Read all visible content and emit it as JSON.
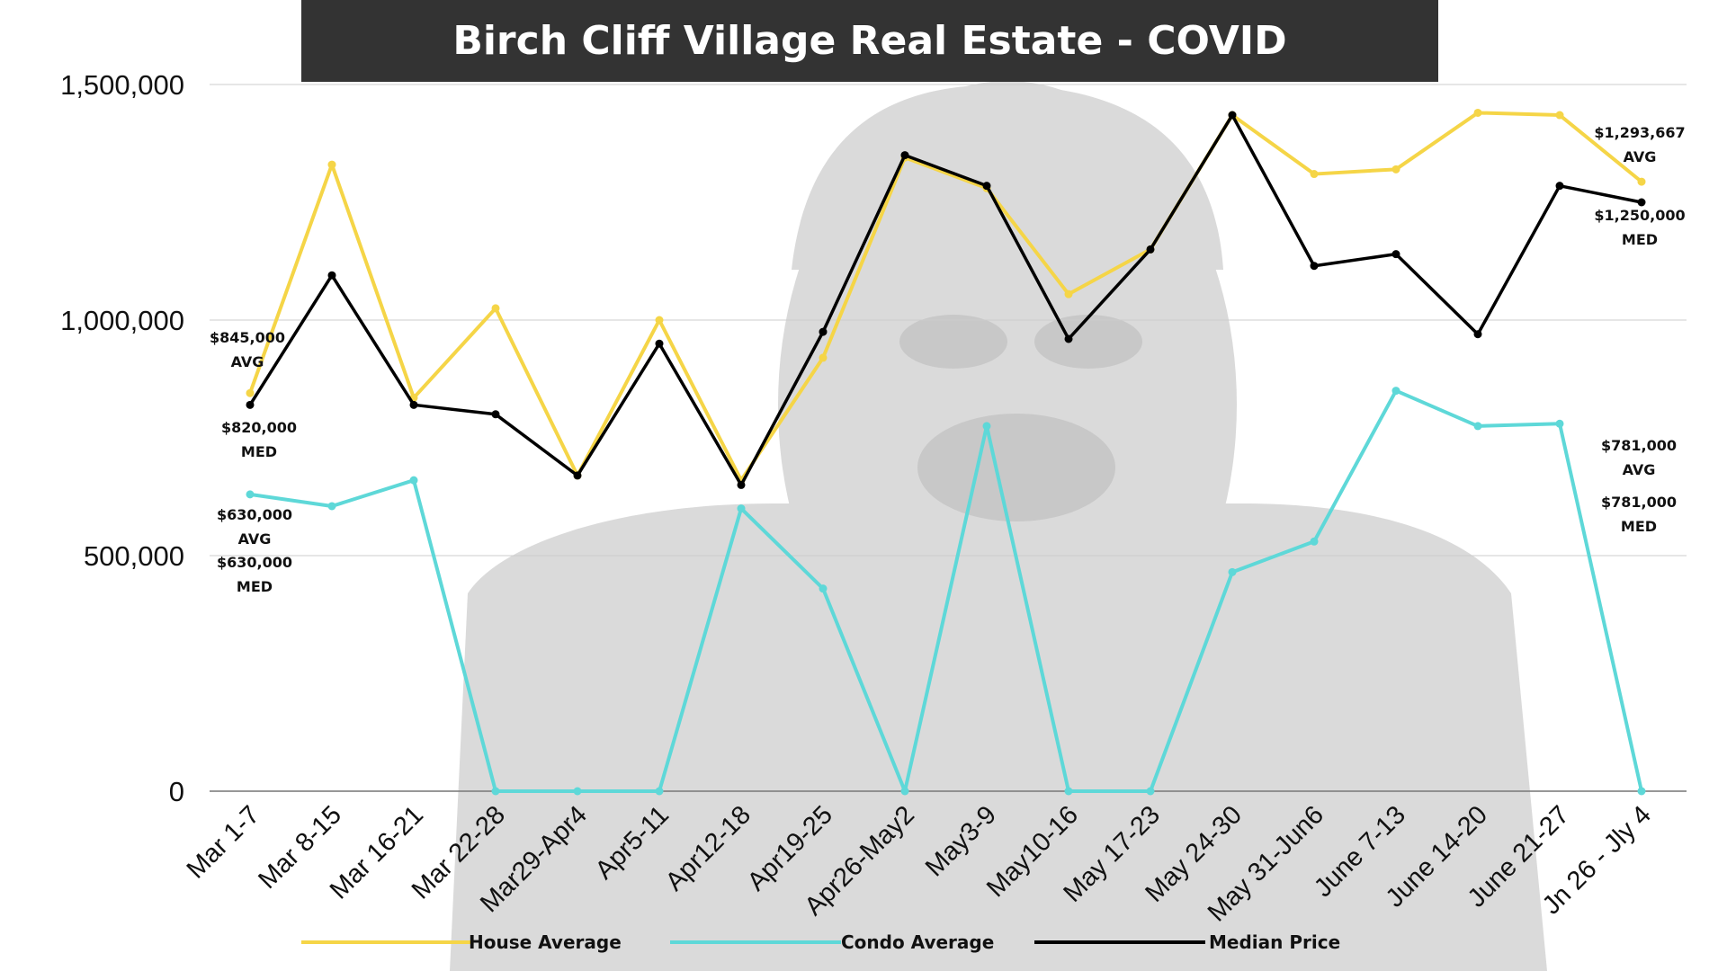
{
  "title": "Birch Cliff Village Real Estate - COVID",
  "colors": {
    "house": "#F5D547",
    "condo": "#5ED8D8",
    "median": "#000000",
    "grid": "#cccccc",
    "title_bg": "#333333",
    "watermark": "#d3d3d3"
  },
  "chart_data": {
    "type": "line",
    "title": "Birch Cliff Village Real Estate - COVID",
    "xlabel": "",
    "ylabel": "",
    "ylim": [
      0,
      1500000
    ],
    "yticks": [
      0,
      500000,
      1000000,
      1500000
    ],
    "ytick_labels": [
      "0",
      "500,000",
      "1,000,000",
      "1,500,000"
    ],
    "grid": true,
    "legend_position": "bottom",
    "categories": [
      "Mar 1-7",
      "Mar 8-15",
      "Mar 16-21",
      "Mar 22-28",
      "Mar29-Apr4",
      "Apr5-11",
      "Apr12-18",
      "Apr19-25",
      "Apr26-May2",
      "May3-9",
      "May10-16",
      "May 17-23",
      "May 24-30",
      "May 31-Jun6",
      "June 7-13",
      "June 14-20",
      "June 21-27",
      "Jn 26 - Jly 4"
    ],
    "series": [
      {
        "name": "House Average",
        "color": "#F5D547",
        "values": [
          845000,
          1330000,
          835000,
          1025000,
          670000,
          1000000,
          660000,
          920000,
          1345000,
          1280000,
          1055000,
          1150000,
          1435000,
          1310000,
          1320000,
          1440000,
          1435000,
          1293667
        ]
      },
      {
        "name": "Condo Average",
        "color": "#5ED8D8",
        "values": [
          630000,
          605000,
          660000,
          0,
          0,
          0,
          600000,
          430000,
          0,
          775000,
          0,
          0,
          465000,
          530000,
          850000,
          775000,
          780000,
          0
        ]
      },
      {
        "name": "Median Price",
        "color": "#000000",
        "values": [
          820000,
          1095000,
          820000,
          800000,
          670000,
          950000,
          650000,
          975000,
          1350000,
          1285000,
          960000,
          1150000,
          1435000,
          1115000,
          1140000,
          970000,
          1285000,
          1250000
        ]
      }
    ],
    "annotations": [
      {
        "lines": [
          "$845,000",
          "AVG"
        ]
      },
      {
        "lines": [
          "$820,000",
          "MED"
        ]
      },
      {
        "lines": [
          "$630,000",
          "AVG"
        ]
      },
      {
        "lines": [
          "$630,000",
          "MED"
        ]
      },
      {
        "lines": [
          "$1,293,667",
          "AVG"
        ]
      },
      {
        "lines": [
          "$1,250,000",
          "MED"
        ]
      },
      {
        "lines": [
          "$781,000",
          "AVG"
        ]
      },
      {
        "lines": [
          "$781,000",
          "MED"
        ]
      }
    ]
  }
}
